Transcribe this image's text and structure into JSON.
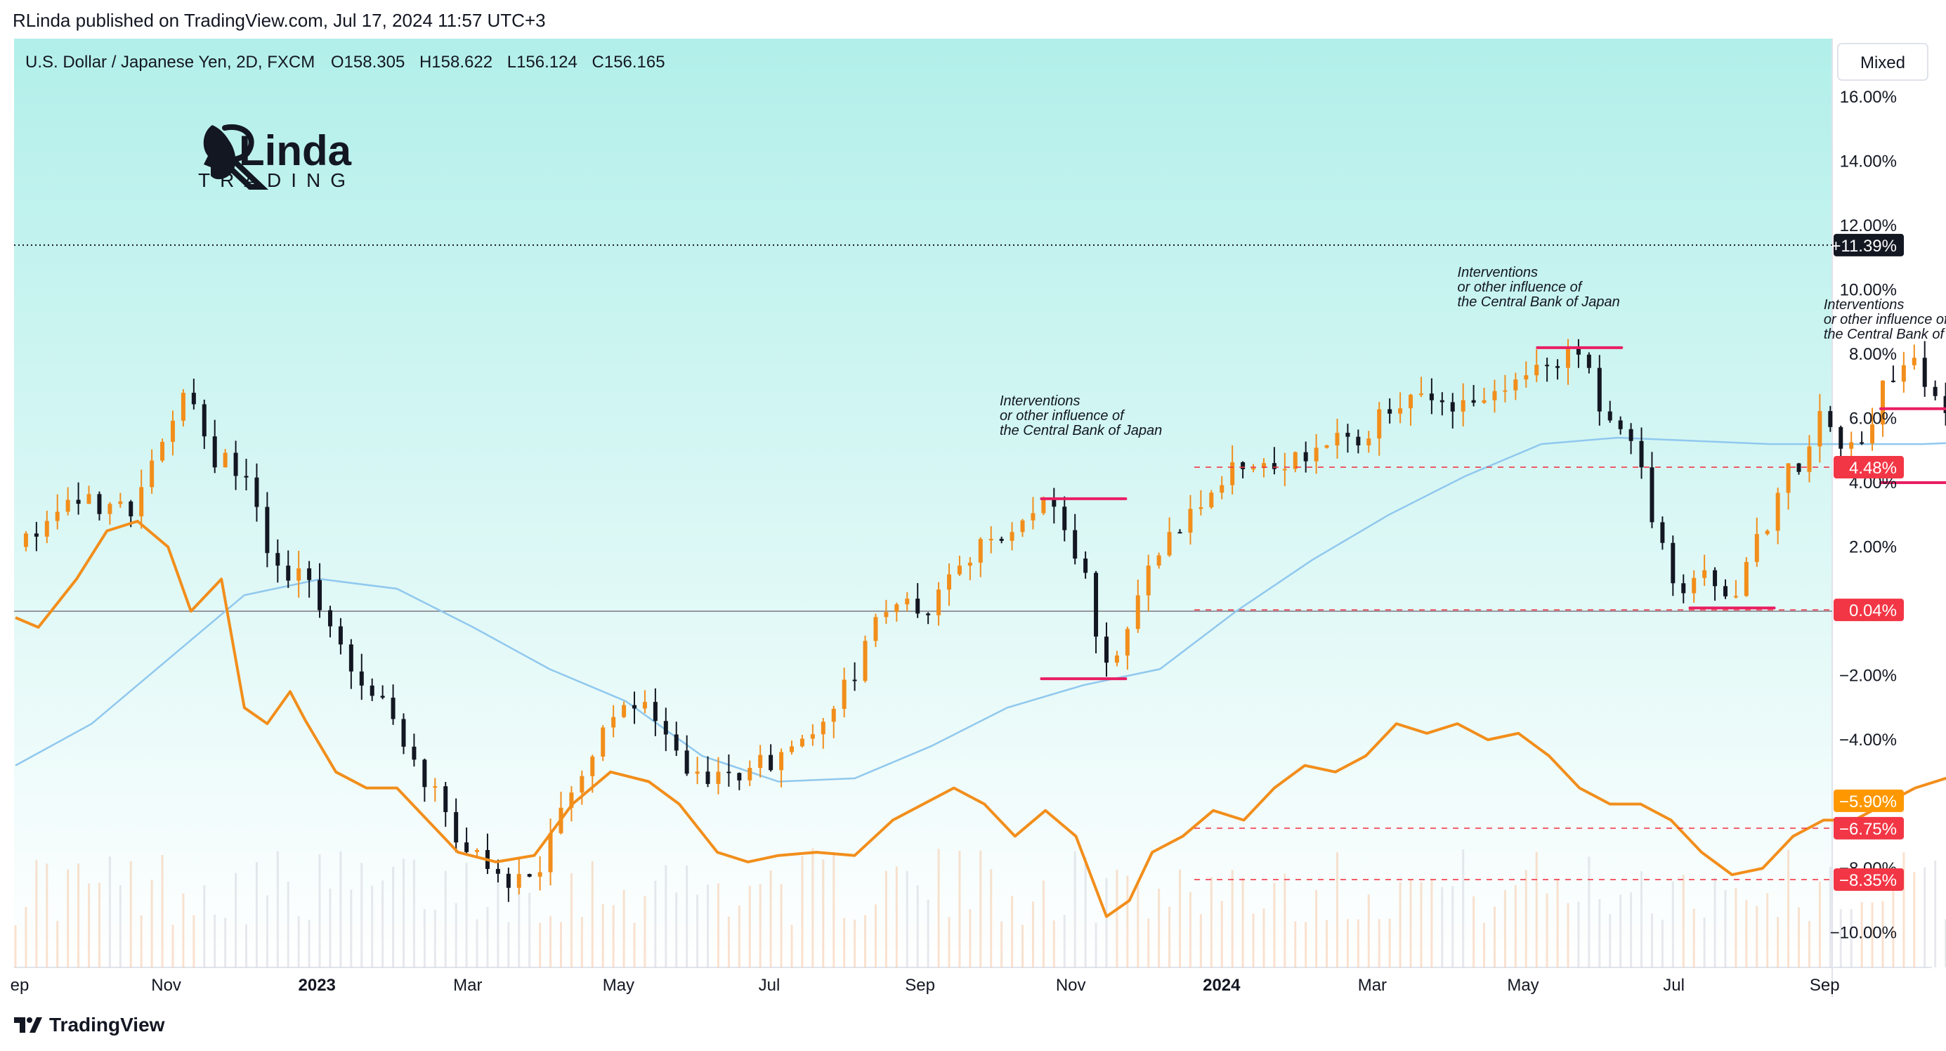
{
  "publisher_line": "RLinda published on TradingView.com, Jul 17, 2024 11:57 UTC+3",
  "brand_footer": "TradingView",
  "colors": {
    "background_top": "#b2efea",
    "background_bottom": "#ffffff",
    "candle_up": "#f28e1b",
    "candle_down": "#131722",
    "compare_line": "#f28e1b",
    "moving_average": "#90c8ee",
    "annotation": "#e91e63",
    "zero_line": "#9598a1",
    "label_red": "#f23645",
    "label_orange": "#ff9800",
    "label_dark": "#131722"
  },
  "logo": {
    "text_top": "Linda",
    "text_bottom": "TRADING",
    "icon": "woman-profile-logo-icon"
  },
  "chart_data": {
    "type": "candlestick",
    "symbol_info": {
      "name": "U.S. Dollar / Japanese Yen, 2D, FXCM",
      "open": "O158.305",
      "high": "H158.622",
      "low": "L156.124",
      "close": "C156.165"
    },
    "scale_mode": "Mixed",
    "y_unit": "percent change",
    "ylim": [
      -11,
      16.5
    ],
    "y_ticks": [
      {
        "value": 16,
        "label": "16.00%"
      },
      {
        "value": 14,
        "label": "14.00%"
      },
      {
        "value": 12,
        "label": "12.00%"
      },
      {
        "value": 10,
        "label": "10.00%"
      },
      {
        "value": 8,
        "label": "8.00%"
      },
      {
        "value": 6,
        "label": "6.00%"
      },
      {
        "value": 4,
        "label": "4.00%"
      },
      {
        "value": 2,
        "label": "2.00%"
      },
      {
        "value": -2,
        "label": "−2.00%"
      },
      {
        "value": -4,
        "label": "−4.00%"
      },
      {
        "value": -8,
        "label": "−8.00%"
      },
      {
        "value": -10,
        "label": "−10.00%"
      }
    ],
    "x_ticks": [
      {
        "label": "ep",
        "bold": false
      },
      {
        "label": "Nov",
        "bold": false
      },
      {
        "label": "2023",
        "bold": true
      },
      {
        "label": "Mar",
        "bold": false
      },
      {
        "label": "May",
        "bold": false
      },
      {
        "label": "Jul",
        "bold": false
      },
      {
        "label": "Sep",
        "bold": false
      },
      {
        "label": "Nov",
        "bold": false
      },
      {
        "label": "2024",
        "bold": true
      },
      {
        "label": "Mar",
        "bold": false
      },
      {
        "label": "May",
        "bold": false
      },
      {
        "label": "Jul",
        "bold": false
      },
      {
        "label": "Sep",
        "bold": false
      }
    ],
    "x_tick_month_index": [
      0,
      2,
      4,
      6,
      8,
      10,
      12,
      14,
      16,
      18,
      20,
      22,
      24
    ],
    "months_span": 25,
    "price_level_labels": [
      {
        "value": 11.39,
        "label": "+11.39%",
        "style": "dark"
      },
      {
        "value": 4.48,
        "label": "4.48%",
        "style": "red"
      },
      {
        "value": 0.04,
        "label": "0.04%",
        "style": "red"
      },
      {
        "value": -5.9,
        "label": "−5.90%",
        "style": "orange"
      },
      {
        "value": -6.75,
        "label": "−6.75%",
        "style": "red"
      },
      {
        "value": -8.35,
        "label": "−8.35%",
        "style": "red"
      }
    ],
    "price_path": [
      [
        0.0,
        2.0
      ],
      [
        0.5,
        2.8
      ],
      [
        1.0,
        3.5
      ],
      [
        1.5,
        3.3
      ],
      [
        2.0,
        5.5
      ],
      [
        2.3,
        7.0
      ],
      [
        2.6,
        4.8
      ],
      [
        3.0,
        4.5
      ],
      [
        3.3,
        1.8
      ],
      [
        3.8,
        0.8
      ],
      [
        4.3,
        -1.5
      ],
      [
        4.8,
        -2.8
      ],
      [
        5.2,
        -4.5
      ],
      [
        5.7,
        -6.8
      ],
      [
        6.2,
        -8.2
      ],
      [
        6.8,
        -8.5
      ],
      [
        7.3,
        -5.5
      ],
      [
        7.8,
        -3.5
      ],
      [
        8.2,
        -2.5
      ],
      [
        8.6,
        -3.8
      ],
      [
        9.0,
        -5.5
      ],
      [
        9.5,
        -5.0
      ],
      [
        10.0,
        -4.5
      ],
      [
        10.5,
        -3.5
      ],
      [
        11.0,
        -2.0
      ],
      [
        11.5,
        0.5
      ],
      [
        12.0,
        0.2
      ],
      [
        12.5,
        1.5
      ],
      [
        13.2,
        3.0
      ],
      [
        13.6,
        3.3
      ],
      [
        14.0,
        1.0
      ],
      [
        14.3,
        -1.8
      ],
      [
        14.6,
        -0.5
      ],
      [
        15.0,
        2.0
      ],
      [
        15.5,
        3.0
      ],
      [
        16.0,
        4.5
      ],
      [
        16.5,
        4.8
      ],
      [
        17.0,
        4.8
      ],
      [
        17.5,
        5.5
      ],
      [
        18.0,
        6.0
      ],
      [
        18.5,
        6.8
      ],
      [
        19.0,
        6.2
      ],
      [
        19.5,
        6.5
      ],
      [
        20.0,
        7.8
      ],
      [
        20.4,
        8.0
      ],
      [
        20.8,
        6.5
      ],
      [
        21.3,
        4.5
      ],
      [
        21.7,
        1.0
      ],
      [
        22.1,
        1.0
      ],
      [
        22.5,
        0.3
      ],
      [
        22.9,
        2.5
      ],
      [
        23.3,
        4.5
      ],
      [
        23.7,
        6.0
      ],
      [
        24.1,
        5.0
      ],
      [
        24.5,
        7.0
      ],
      [
        24.9,
        7.5
      ],
      [
        25.3,
        6.0
      ],
      [
        25.7,
        4.8
      ],
      [
        26.1,
        7.5
      ],
      [
        26.5,
        8.0
      ],
      [
        27.0,
        8.5
      ],
      [
        27.4,
        10.5
      ],
      [
        27.8,
        12.5
      ],
      [
        28.1,
        10.0
      ],
      [
        28.5,
        10.5
      ],
      [
        28.9,
        11.8
      ],
      [
        29.3,
        11.0
      ],
      [
        29.7,
        12.5
      ],
      [
        30.1,
        13.5
      ],
      [
        30.5,
        14.8
      ],
      [
        30.8,
        15.3
      ],
      [
        31.1,
        14.5
      ],
      [
        31.3,
        12.0
      ],
      [
        31.5,
        12.5
      ]
    ],
    "intervention_levels": [
      {
        "index": 14,
        "value": 3.5
      },
      {
        "index": 14,
        "value": -2.1
      },
      {
        "index": 20.5,
        "value": 8.2
      },
      {
        "index": 22.5,
        "value": 0.1
      },
      {
        "index": 25.0,
        "value": 6.3
      },
      {
        "index": 25.0,
        "value": 4.0
      },
      {
        "index": 26.3,
        "value": 7.8
      },
      {
        "index": 26.3,
        "value": 4.5
      },
      {
        "index": 28.1,
        "value": 14.4
      },
      {
        "index": 28.1,
        "value": 8.3
      },
      {
        "index": 29.6,
        "value": 12.7
      },
      {
        "index": 29.9,
        "value": 10.3
      }
    ],
    "annotations": [
      {
        "lines": [
          "Interventions",
          "or other influence of",
          "the Central Bank of Japan"
        ],
        "index": 12.9,
        "value": 6.4
      },
      {
        "lines": [
          "Interventions",
          "or other influence of",
          "the Central Bank of Japan"
        ],
        "index": 18.9,
        "value": 10.4
      },
      {
        "lines": [
          "Interventions",
          "or other influence of",
          "the Central Bank of Japan"
        ],
        "index": 23.7,
        "value": 9.4
      },
      {
        "lines": [
          "Interventions",
          "or other influence of",
          "the Central Bank of Japan"
        ],
        "index": 26.2,
        "value": 15.9
      }
    ],
    "moving_average": [
      [
        0.0,
        -4.8
      ],
      [
        1.0,
        -3.5
      ],
      [
        2.0,
        -1.5
      ],
      [
        3.0,
        0.5
      ],
      [
        4.0,
        1.0
      ],
      [
        5.0,
        0.7
      ],
      [
        6.0,
        -0.5
      ],
      [
        7.0,
        -1.8
      ],
      [
        8.0,
        -2.8
      ],
      [
        9.0,
        -4.5
      ],
      [
        10.0,
        -5.3
      ],
      [
        11.0,
        -5.2
      ],
      [
        12.0,
        -4.2
      ],
      [
        13.0,
        -3.0
      ],
      [
        14.0,
        -2.3
      ],
      [
        15.0,
        -1.8
      ],
      [
        16.0,
        0.0
      ],
      [
        17.0,
        1.6
      ],
      [
        18.0,
        3.0
      ],
      [
        19.0,
        4.2
      ],
      [
        20.0,
        5.2
      ],
      [
        21.0,
        5.4
      ],
      [
        22.0,
        5.3
      ],
      [
        23.0,
        5.2
      ],
      [
        24.0,
        5.2
      ],
      [
        25.0,
        5.2
      ],
      [
        26.0,
        5.3
      ],
      [
        27.0,
        5.5
      ],
      [
        28.0,
        6.5
      ],
      [
        29.0,
        7.8
      ],
      [
        30.0,
        9.0
      ],
      [
        31.0,
        10.4
      ],
      [
        31.5,
        10.7
      ]
    ],
    "compare_series": [
      [
        0.0,
        -0.2
      ],
      [
        0.3,
        -0.5
      ],
      [
        0.8,
        1.0
      ],
      [
        1.2,
        2.5
      ],
      [
        1.6,
        2.8
      ],
      [
        2.0,
        2.0
      ],
      [
        2.3,
        0.0
      ],
      [
        2.7,
        1.0
      ],
      [
        3.0,
        -3.0
      ],
      [
        3.3,
        -3.5
      ],
      [
        3.6,
        -2.5
      ],
      [
        3.8,
        -3.4
      ],
      [
        4.2,
        -5.0
      ],
      [
        4.6,
        -5.5
      ],
      [
        5.0,
        -5.5
      ],
      [
        5.4,
        -6.5
      ],
      [
        5.8,
        -7.5
      ],
      [
        6.3,
        -7.8
      ],
      [
        6.8,
        -7.6
      ],
      [
        7.3,
        -6.0
      ],
      [
        7.8,
        -5.0
      ],
      [
        8.3,
        -5.3
      ],
      [
        8.7,
        -6.0
      ],
      [
        9.2,
        -7.5
      ],
      [
        9.6,
        -7.8
      ],
      [
        10.0,
        -7.6
      ],
      [
        10.5,
        -7.5
      ],
      [
        11.0,
        -7.6
      ],
      [
        11.5,
        -6.5
      ],
      [
        11.9,
        -6.0
      ],
      [
        12.3,
        -5.5
      ],
      [
        12.7,
        -6.0
      ],
      [
        13.1,
        -7.0
      ],
      [
        13.5,
        -6.2
      ],
      [
        13.9,
        -7.0
      ],
      [
        14.3,
        -9.5
      ],
      [
        14.6,
        -9.0
      ],
      [
        14.9,
        -7.5
      ],
      [
        15.3,
        -7.0
      ],
      [
        15.7,
        -6.2
      ],
      [
        16.1,
        -6.5
      ],
      [
        16.5,
        -5.5
      ],
      [
        16.9,
        -4.8
      ],
      [
        17.3,
        -5.0
      ],
      [
        17.7,
        -4.5
      ],
      [
        18.1,
        -3.5
      ],
      [
        18.5,
        -3.8
      ],
      [
        18.9,
        -3.5
      ],
      [
        19.3,
        -4.0
      ],
      [
        19.7,
        -3.8
      ],
      [
        20.1,
        -4.5
      ],
      [
        20.5,
        -5.5
      ],
      [
        20.9,
        -6.0
      ],
      [
        21.3,
        -6.0
      ],
      [
        21.7,
        -6.5
      ],
      [
        22.1,
        -7.5
      ],
      [
        22.5,
        -8.2
      ],
      [
        22.9,
        -8.0
      ],
      [
        23.3,
        -7.0
      ],
      [
        23.7,
        -6.5
      ],
      [
        24.1,
        -6.5
      ],
      [
        24.5,
        -6.0
      ],
      [
        24.9,
        -5.5
      ],
      [
        25.3,
        -5.2
      ],
      [
        25.7,
        -5.6
      ],
      [
        26.1,
        -5.8
      ],
      [
        26.5,
        -6.8
      ],
      [
        26.9,
        -6.0
      ],
      [
        27.3,
        -5.3
      ],
      [
        27.7,
        -5.5
      ],
      [
        28.1,
        -4.0
      ],
      [
        28.5,
        -4.2
      ],
      [
        28.9,
        -4.5
      ],
      [
        29.3,
        -5.0
      ],
      [
        29.7,
        -4.8
      ],
      [
        30.1,
        -5.2
      ],
      [
        30.5,
        -4.5
      ],
      [
        30.9,
        -4.0
      ],
      [
        31.3,
        -4.8
      ],
      [
        31.5,
        -5.9
      ]
    ],
    "projection_arrows": [
      [
        [
          31.6,
          11.0
        ],
        [
          31.8,
          9.5
        ],
        [
          32.0,
          9.8
        ],
        [
          32.2,
          8.5
        ],
        [
          32.5,
          8.0
        ],
        [
          32.6,
          6.5
        ],
        [
          32.8,
          5.2
        ]
      ],
      [
        [
          31.6,
          -5.9
        ],
        [
          31.8,
          -6.7
        ],
        [
          31.9,
          -8.0
        ]
      ]
    ]
  }
}
